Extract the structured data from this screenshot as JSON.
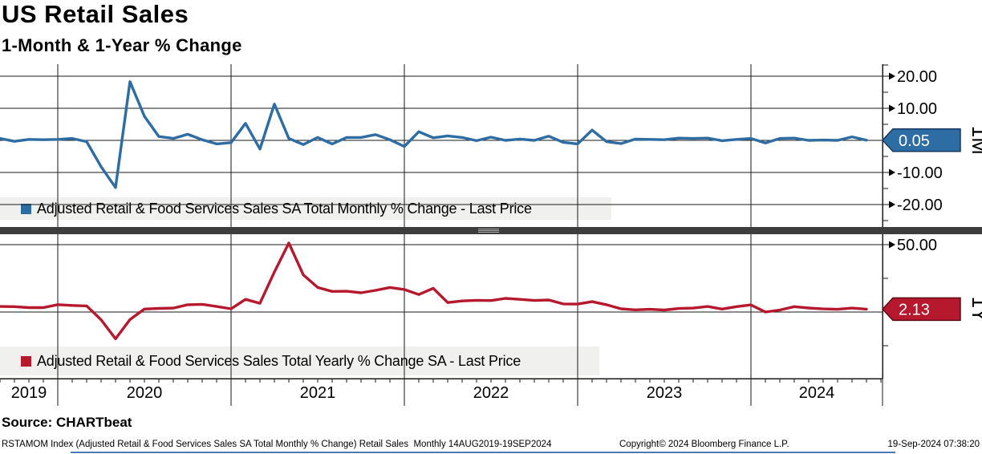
{
  "header": {
    "title": "US Retail Sales",
    "subtitle": "1-Month & 1-Year % Change"
  },
  "legends": [
    {
      "label": "Adjusted Retail & Food Services Sales SA Total Monthly % Change - Last Price",
      "swatch_color": "#2e6da4"
    },
    {
      "label": "Adjusted Retail & Food Services Sales Total Yearly % Change SA - Last Price",
      "swatch_color": "#b6182e"
    }
  ],
  "source_line": "Source: CHARTbeat",
  "footer": {
    "left": "RSTAMOM Index (Adjusted Retail & Food Services Sales SA Total Monthly % Change) Retail Sales  Monthly 14AUG2019-19SEP2024",
    "copyright": "Copyright© 2024 Bloomberg Finance L.P.",
    "timestamp": "19-Sep-2024 07:38:20"
  },
  "colors": {
    "blue_line": "#2e6da4",
    "blue_flag_border": "#17375e",
    "red_line": "#b6182e",
    "red_flag_border": "#5e0b17",
    "gridline": "#1a1a1a",
    "legend_bg": "#f0f0ef",
    "divider": "#3d3d3d"
  },
  "xaxis": {
    "years": [
      "2019",
      "2020",
      "2021",
      "2022",
      "2023",
      "2024"
    ],
    "range_label": "14AUG2019-19SEP2024"
  },
  "chart_data": [
    {
      "type": "line",
      "panel": "top",
      "series_name": "Adjusted Retail & Food Services Sales SA Total Monthly % Change - Last Price",
      "axis_side_label": "1M",
      "last_price": "0.05",
      "color": "#2e6da4",
      "ylim": [
        -27,
        23.75
      ],
      "gridlines_y": [
        20,
        10,
        0,
        -10,
        -20
      ],
      "ytick_values": [
        20,
        10,
        -10,
        -20
      ],
      "ytick_labels": [
        "20.00",
        "10.00",
        "-10.00",
        "-20.00"
      ],
      "minor_ticks": [
        23.5,
        15,
        5,
        -5,
        -15,
        -25
      ],
      "start_month": "Aug 2019",
      "end_month": "Aug 2024",
      "freq": "monthly",
      "values": [
        0.6,
        -0.3,
        0.3,
        0.2,
        0.3,
        0.6,
        -0.4,
        -8.2,
        -14.7,
        18.3,
        7.5,
        1.2,
        0.6,
        1.9,
        0.2,
        -1.1,
        -0.7,
        5.3,
        -2.7,
        11.3,
        0.6,
        -1.3,
        0.9,
        -1.1,
        0.9,
        0.9,
        1.8,
        0.2,
        -1.9,
        2.7,
        0.8,
        1.4,
        0.9,
        -0.1,
        1.0,
        0.0,
        0.4,
        0.0,
        1.3,
        -0.6,
        -1.1,
        3.2,
        -0.4,
        -1.0,
        0.4,
        0.3,
        0.2,
        0.7,
        0.6,
        0.7,
        -0.1,
        0.3,
        0.6,
        -0.8,
        0.6,
        0.7,
        0.0,
        0.1,
        0.0,
        1.1,
        0.05
      ]
    },
    {
      "type": "line",
      "panel": "bottom",
      "series_name": "Adjusted Retail & Food Services Sales Total Yearly % Change SA - Last Price",
      "axis_side_label": "1Y",
      "last_price": "2.13",
      "color": "#b6182e",
      "ylim": [
        -49.4,
        57.7
      ],
      "gridlines_y": [
        50,
        0
      ],
      "ytick_values": [
        50
      ],
      "ytick_labels": [
        "50.00"
      ],
      "minor_ticks": [
        25,
        -25
      ],
      "start_month": "Aug 2019",
      "end_month": "Aug 2024",
      "freq": "monthly",
      "values": [
        4.1,
        4.0,
        3.3,
        3.3,
        5.5,
        4.9,
        4.5,
        -5.7,
        -19.9,
        -5.6,
        2.2,
        2.7,
        2.9,
        5.4,
        5.7,
        4.1,
        2.4,
        9.4,
        6.5,
        29.7,
        51.2,
        27.6,
        18.2,
        15.3,
        15.4,
        14.3,
        16.1,
        18.2,
        16.7,
        13.0,
        17.6,
        7.0,
        8.2,
        8.7,
        8.5,
        10.1,
        9.4,
        8.6,
        8.9,
        6.0,
        5.9,
        7.7,
        5.4,
        2.4,
        1.6,
        2.0,
        1.5,
        2.6,
        2.9,
        4.1,
        2.2,
        4.0,
        5.3,
        0.0,
        1.5,
        4.0,
        3.0,
        2.3,
        2.0,
        2.9,
        2.13
      ]
    }
  ]
}
